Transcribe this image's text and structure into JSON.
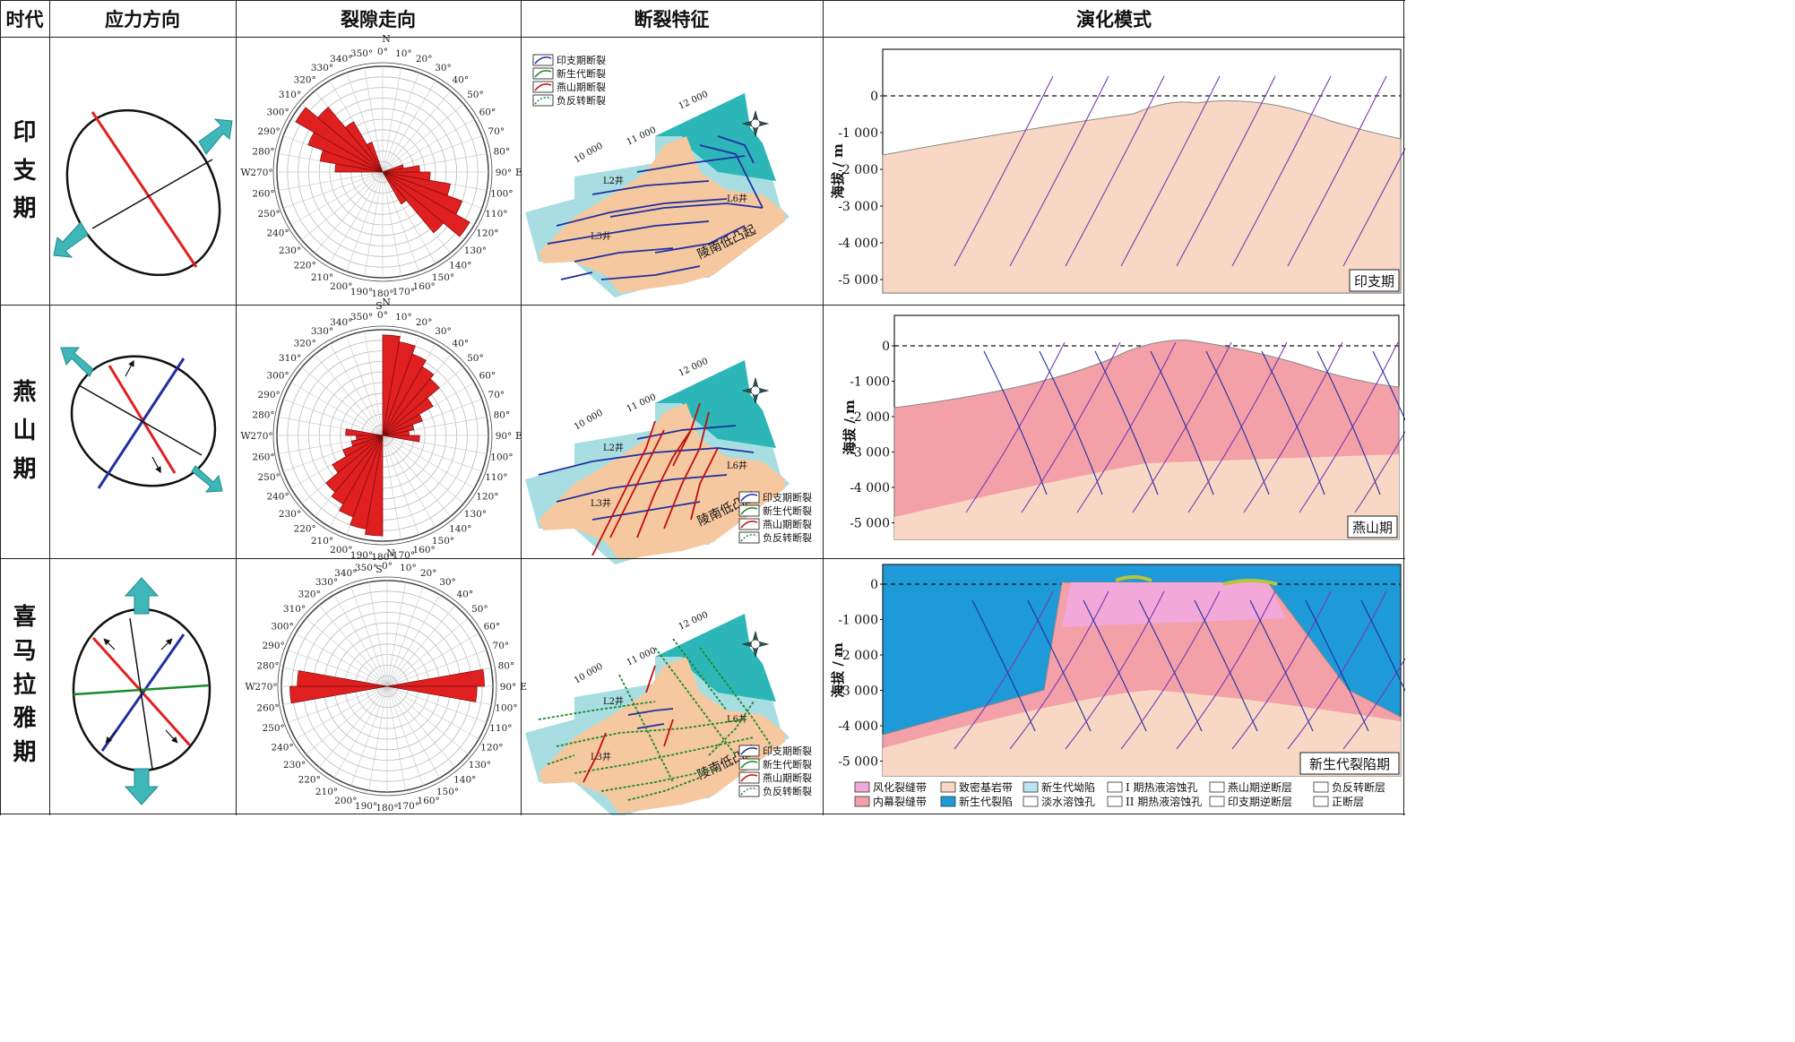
{
  "header": {
    "era": "时代",
    "stress": "应力方向",
    "fracture": "裂隙走向",
    "fault": "断裂特征",
    "evolution": "演化模式"
  },
  "eras": [
    {
      "chars": [
        "印",
        "支",
        "期"
      ],
      "profile_tag": "印支期"
    },
    {
      "chars": [
        "燕",
        "山",
        "期"
      ],
      "profile_tag": "燕山期"
    },
    {
      "chars": [
        "喜",
        "马",
        "拉",
        "雅",
        "期"
      ],
      "profile_tag": "新生代裂陷期"
    }
  ],
  "rose": {
    "N": "N",
    "S": "S",
    "E": "E",
    "W": "W",
    "angles": [
      "0°",
      "10°",
      "20°",
      "30°",
      "40°",
      "50°",
      "60°",
      "70°",
      "80°",
      "90°",
      "100°",
      "110°",
      "120°",
      "130°",
      "140°",
      "150°",
      "160°",
      "170°",
      "180°",
      "190°",
      "200°",
      "210°",
      "220°",
      "230°",
      "240°",
      "250°",
      "260°",
      "270°",
      "280°",
      "290°",
      "300°",
      "310°",
      "320°",
      "330°",
      "340°",
      "350°"
    ],
    "petals_by_era": [
      [
        0.95,
        0.8,
        0.6,
        0.4,
        0.55,
        0.75,
        0.9,
        0.65,
        0.3,
        0.15
      ],
      [
        0.3,
        0.9,
        0.95,
        0.85,
        0.6,
        0.4,
        0.2,
        0.1,
        0.05
      ],
      [
        0.0,
        0.0,
        0.0,
        0.0,
        0.0,
        0.0,
        0.0,
        0.0,
        0.95
      ]
    ]
  },
  "map": {
    "legend": [
      "印支期断裂",
      "新生代断裂",
      "燕山期断裂",
      "负反转断裂"
    ],
    "contours": [
      "10 000",
      "11 000",
      "12 000"
    ],
    "wells": [
      "L2井",
      "L3井",
      "L6井"
    ],
    "region": "陵南低凸起"
  },
  "profile": {
    "ylabel": "海拔 / m",
    "ticks": [
      "0",
      "-1 000",
      "-2 000",
      "-3 000",
      "-4 000",
      "-5 000"
    ]
  },
  "legend_bottom": [
    "风化裂缝带",
    "致密基岩带",
    "新生代坳陷",
    "I 期热液溶蚀孔",
    "燕山期逆断层",
    "负反转断层",
    "内幕裂缝带",
    "新生代裂陷",
    "淡水溶蚀孔",
    "II 期热液溶蚀孔",
    "印支期逆断层",
    "正断层"
  ],
  "colors": {
    "rose_fill": "#e02020",
    "arrow": "#3fb6b8",
    "basement": "#f8d8c4",
    "fracture_zone": "#f3a0a8",
    "weathered_zone": "#f2a8d8",
    "sea": "#1e9ad8",
    "shallow": "#6ccfd8",
    "map_land": "#f6c8a0",
    "map_light": "#a8dee2",
    "map_teal": "#2cb6b8"
  }
}
